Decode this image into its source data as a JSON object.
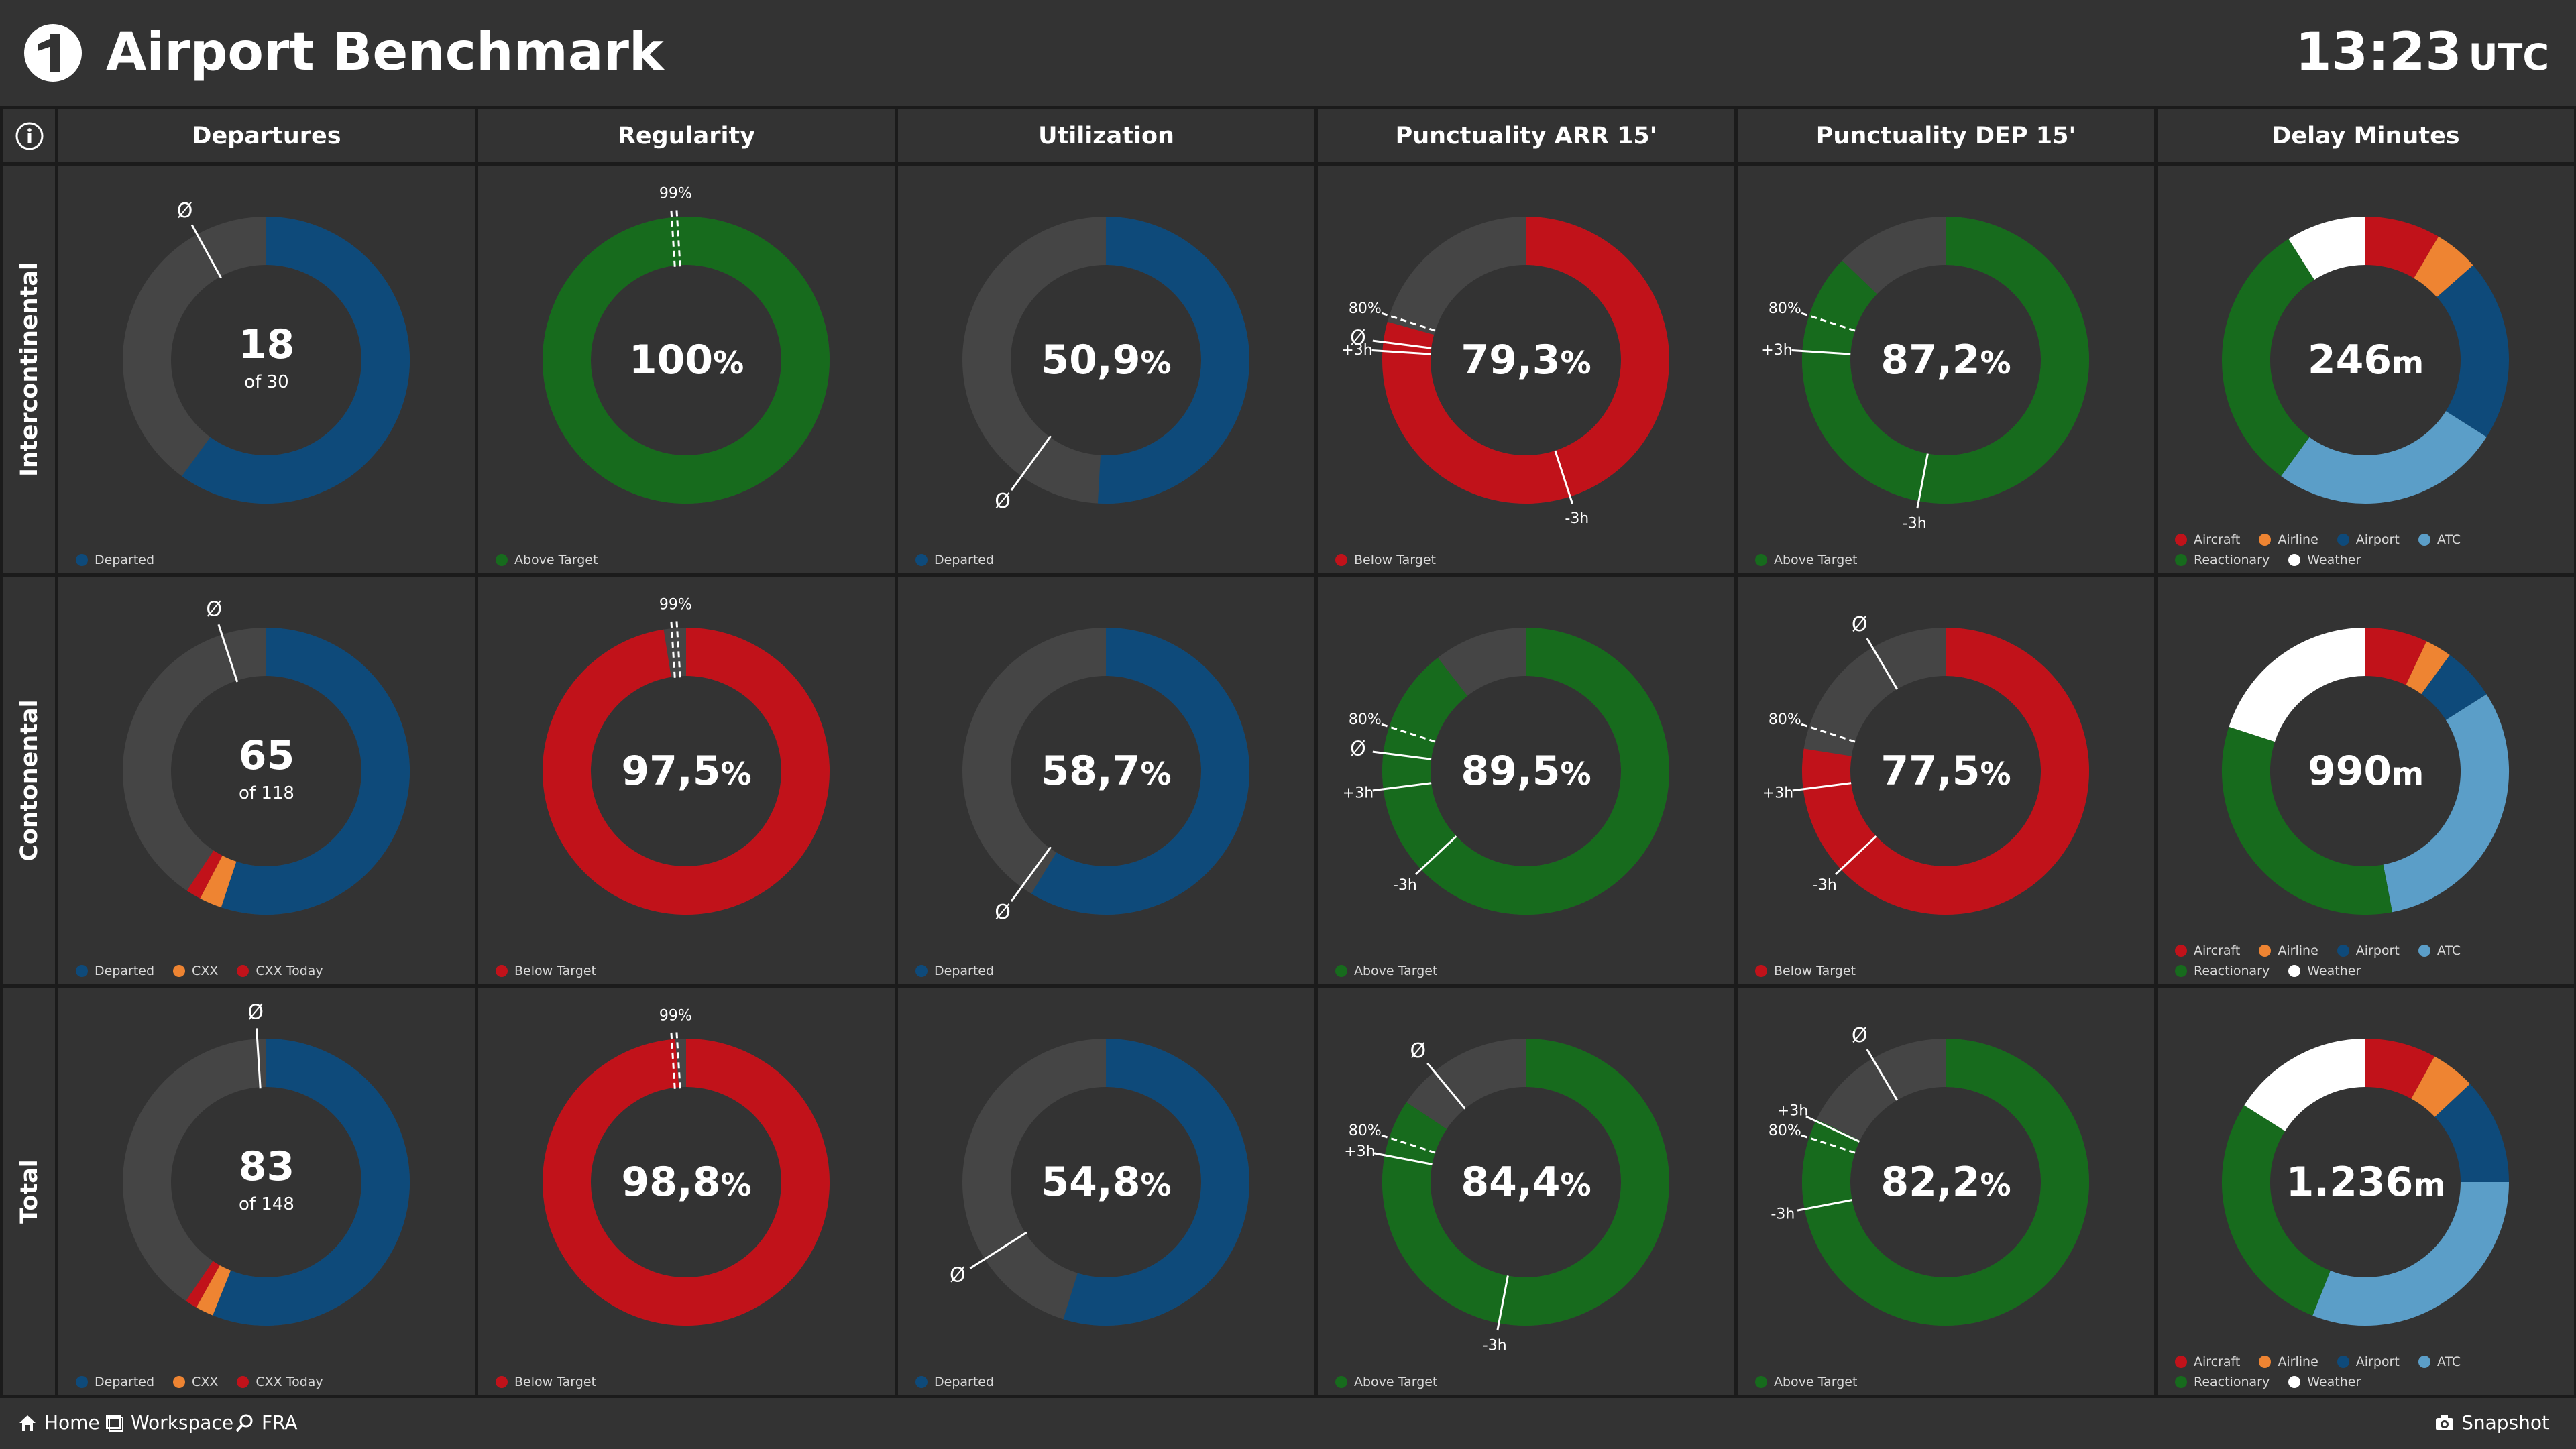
{
  "app": {
    "title": "Airport Benchmark",
    "time": "13:23",
    "timezone": "UTC"
  },
  "colors": {
    "blue": "#0e4a7a",
    "green": "#176b1d",
    "red": "#c1121a",
    "orange": "#ee8432",
    "lightblue": "#5b9ec8",
    "white": "#ffffff",
    "track": "#454545",
    "tile": "#333333"
  },
  "columns": [
    "Departures",
    "Regularity",
    "Utilization",
    "Punctuality ARR 15'",
    "Punctuality DEP 15'",
    "Delay Minutes"
  ],
  "rows": [
    "Intercontinental",
    "Contonental",
    "Total"
  ],
  "marker_labels": {
    "avg": "Ø",
    "target": "99%",
    "p80": "80%",
    "plus3h": "+3h",
    "minus3h": "-3h"
  },
  "tiles": [
    [
      {
        "type": "departures",
        "value": "18",
        "sub": "of 30",
        "legend": [
          {
            "label": "Departed",
            "color": "blue"
          }
        ],
        "chart_data": {
          "type": "pie",
          "total": 30,
          "series": [
            {
              "name": "Departed",
              "value": 18,
              "color": "blue"
            }
          ],
          "avg_fraction": 0.92
        }
      },
      {
        "type": "percent",
        "value": "100",
        "unit": "%",
        "legend": [
          {
            "label": "Above Target",
            "color": "green"
          }
        ],
        "chart_data": {
          "type": "pie",
          "fraction": 1.0,
          "color": "green",
          "target": 0.99
        }
      },
      {
        "type": "percent",
        "value": "50,9",
        "unit": "%",
        "legend": [
          {
            "label": "Departed",
            "color": "blue"
          }
        ],
        "chart_data": {
          "type": "pie",
          "fraction": 0.509,
          "color": "blue",
          "avg_fraction": 0.6
        }
      },
      {
        "type": "percent",
        "value": "79,3",
        "unit": "%",
        "legend": [
          {
            "label": "Below Target",
            "color": "red"
          }
        ],
        "chart_data": {
          "type": "pie",
          "fraction": 0.793,
          "color": "red",
          "p80": 0.8,
          "avg": 0.77,
          "plus3h": 0.76,
          "minus3h": 0.45
        }
      },
      {
        "type": "percent",
        "value": "87,2",
        "unit": "%",
        "legend": [
          {
            "label": "Above Target",
            "color": "green"
          }
        ],
        "chart_data": {
          "type": "pie",
          "fraction": 0.872,
          "color": "green",
          "p80": 0.8,
          "plus3h": 0.76,
          "minus3h": 0.53
        }
      },
      {
        "type": "delay",
        "value": "246",
        "unit": "m",
        "legend": [
          {
            "label": "Aircraft",
            "color": "red"
          },
          {
            "label": "Airline",
            "color": "orange"
          },
          {
            "label": "Airport",
            "color": "blue"
          },
          {
            "label": "ATC",
            "color": "lightblue"
          },
          {
            "label": "Reactionary",
            "color": "green"
          },
          {
            "label": "Weather",
            "color": "white"
          }
        ],
        "chart_data": {
          "type": "pie",
          "series": [
            {
              "name": "Aircraft",
              "value": 0.085,
              "color": "red"
            },
            {
              "name": "Airline",
              "value": 0.05,
              "color": "orange"
            },
            {
              "name": "Airport",
              "value": 0.205,
              "color": "blue"
            },
            {
              "name": "ATC",
              "value": 0.26,
              "color": "lightblue"
            },
            {
              "name": "Reactionary",
              "value": 0.31,
              "color": "green"
            },
            {
              "name": "Weather",
              "value": 0.09,
              "color": "white"
            }
          ]
        }
      }
    ],
    [
      {
        "type": "departures",
        "value": "65",
        "sub": "of 118",
        "legend": [
          {
            "label": "Departed",
            "color": "blue"
          },
          {
            "label": "CXX",
            "color": "orange"
          },
          {
            "label": "CXX Today",
            "color": "red"
          }
        ],
        "chart_data": {
          "type": "pie",
          "total": 118,
          "series": [
            {
              "name": "Departed",
              "value": 65,
              "color": "blue"
            },
            {
              "name": "CXX",
              "value": 3,
              "color": "orange"
            },
            {
              "name": "CXX Today",
              "value": 2,
              "color": "red"
            }
          ],
          "avg_fraction": 0.95
        }
      },
      {
        "type": "percent",
        "value": "97,5",
        "unit": "%",
        "legend": [
          {
            "label": "Below Target",
            "color": "red"
          }
        ],
        "chart_data": {
          "type": "pie",
          "fraction": 0.975,
          "color": "red",
          "target": 0.99
        }
      },
      {
        "type": "percent",
        "value": "58,7",
        "unit": "%",
        "legend": [
          {
            "label": "Departed",
            "color": "blue"
          }
        ],
        "chart_data": {
          "type": "pie",
          "fraction": 0.587,
          "color": "blue",
          "avg_fraction": 0.6
        }
      },
      {
        "type": "percent",
        "value": "89,5",
        "unit": "%",
        "legend": [
          {
            "label": "Above Target",
            "color": "green"
          }
        ],
        "chart_data": {
          "type": "pie",
          "fraction": 0.895,
          "color": "green",
          "p80": 0.8,
          "avg": 0.77,
          "plus3h": 0.73,
          "minus3h": 0.63
        }
      },
      {
        "type": "percent",
        "value": "77,5",
        "unit": "%",
        "legend": [
          {
            "label": "Below Target",
            "color": "red"
          }
        ],
        "chart_data": {
          "type": "pie",
          "fraction": 0.775,
          "color": "red",
          "avg": 0.915,
          "p80": 0.8,
          "plus3h": 0.73,
          "minus3h": 0.63
        }
      },
      {
        "type": "delay",
        "value": "990",
        "unit": "m",
        "legend": [
          {
            "label": "Aircraft",
            "color": "red"
          },
          {
            "label": "Airline",
            "color": "orange"
          },
          {
            "label": "Airport",
            "color": "blue"
          },
          {
            "label": "ATC",
            "color": "lightblue"
          },
          {
            "label": "Reactionary",
            "color": "green"
          },
          {
            "label": "Weather",
            "color": "white"
          }
        ],
        "chart_data": {
          "type": "pie",
          "series": [
            {
              "name": "Aircraft",
              "value": 0.07,
              "color": "red"
            },
            {
              "name": "Airline",
              "value": 0.03,
              "color": "orange"
            },
            {
              "name": "Airport",
              "value": 0.06,
              "color": "blue"
            },
            {
              "name": "ATC",
              "value": 0.31,
              "color": "lightblue"
            },
            {
              "name": "Reactionary",
              "value": 0.33,
              "color": "green"
            },
            {
              "name": "Weather",
              "value": 0.2,
              "color": "white"
            }
          ]
        }
      }
    ],
    [
      {
        "type": "departures",
        "value": "83",
        "sub": "of 148",
        "legend": [
          {
            "label": "Departed",
            "color": "blue"
          },
          {
            "label": "CXX",
            "color": "orange"
          },
          {
            "label": "CXX Today",
            "color": "red"
          }
        ],
        "chart_data": {
          "type": "pie",
          "total": 148,
          "series": [
            {
              "name": "Departed",
              "value": 83,
              "color": "blue"
            },
            {
              "name": "CXX",
              "value": 3,
              "color": "orange"
            },
            {
              "name": "CXX Today",
              "value": 2,
              "color": "red"
            }
          ],
          "avg_fraction": 0.99
        }
      },
      {
        "type": "percent",
        "value": "98,8",
        "unit": "%",
        "legend": [
          {
            "label": "Below Target",
            "color": "red"
          }
        ],
        "chart_data": {
          "type": "pie",
          "fraction": 0.988,
          "color": "red",
          "target": 0.99
        }
      },
      {
        "type": "percent",
        "value": "54,8",
        "unit": "%",
        "legend": [
          {
            "label": "Departed",
            "color": "blue"
          }
        ],
        "chart_data": {
          "type": "pie",
          "fraction": 0.548,
          "color": "blue",
          "avg_fraction": 0.66
        }
      },
      {
        "type": "percent",
        "value": "84,4",
        "unit": "%",
        "legend": [
          {
            "label": "Above Target",
            "color": "green"
          }
        ],
        "chart_data": {
          "type": "pie",
          "fraction": 0.844,
          "color": "green",
          "avg": 0.89,
          "p80": 0.8,
          "plus3h": 0.78,
          "minus3h": 0.53
        }
      },
      {
        "type": "percent",
        "value": "82,2",
        "unit": "%",
        "legend": [
          {
            "label": "Above Target",
            "color": "green"
          }
        ],
        "chart_data": {
          "type": "pie",
          "fraction": 0.822,
          "color": "green",
          "avg": 0.915,
          "plus3h": 0.82,
          "p80": 0.8,
          "minus3h": 0.72
        }
      },
      {
        "type": "delay",
        "value": "1.236",
        "unit": "m",
        "legend": [
          {
            "label": "Aircraft",
            "color": "red"
          },
          {
            "label": "Airline",
            "color": "orange"
          },
          {
            "label": "Airport",
            "color": "blue"
          },
          {
            "label": "ATC",
            "color": "lightblue"
          },
          {
            "label": "Reactionary",
            "color": "green"
          },
          {
            "label": "Weather",
            "color": "white"
          }
        ],
        "chart_data": {
          "type": "pie",
          "series": [
            {
              "name": "Aircraft",
              "value": 0.08,
              "color": "red"
            },
            {
              "name": "Airline",
              "value": 0.05,
              "color": "orange"
            },
            {
              "name": "Airport",
              "value": 0.12,
              "color": "blue"
            },
            {
              "name": "ATC",
              "value": 0.31,
              "color": "lightblue"
            },
            {
              "name": "Reactionary",
              "value": 0.28,
              "color": "green"
            },
            {
              "name": "Weather",
              "value": 0.16,
              "color": "white"
            }
          ]
        }
      }
    ]
  ],
  "footer": {
    "home": "Home",
    "workspace": "Workspace",
    "search": "FRA",
    "snapshot": "Snapshot"
  }
}
